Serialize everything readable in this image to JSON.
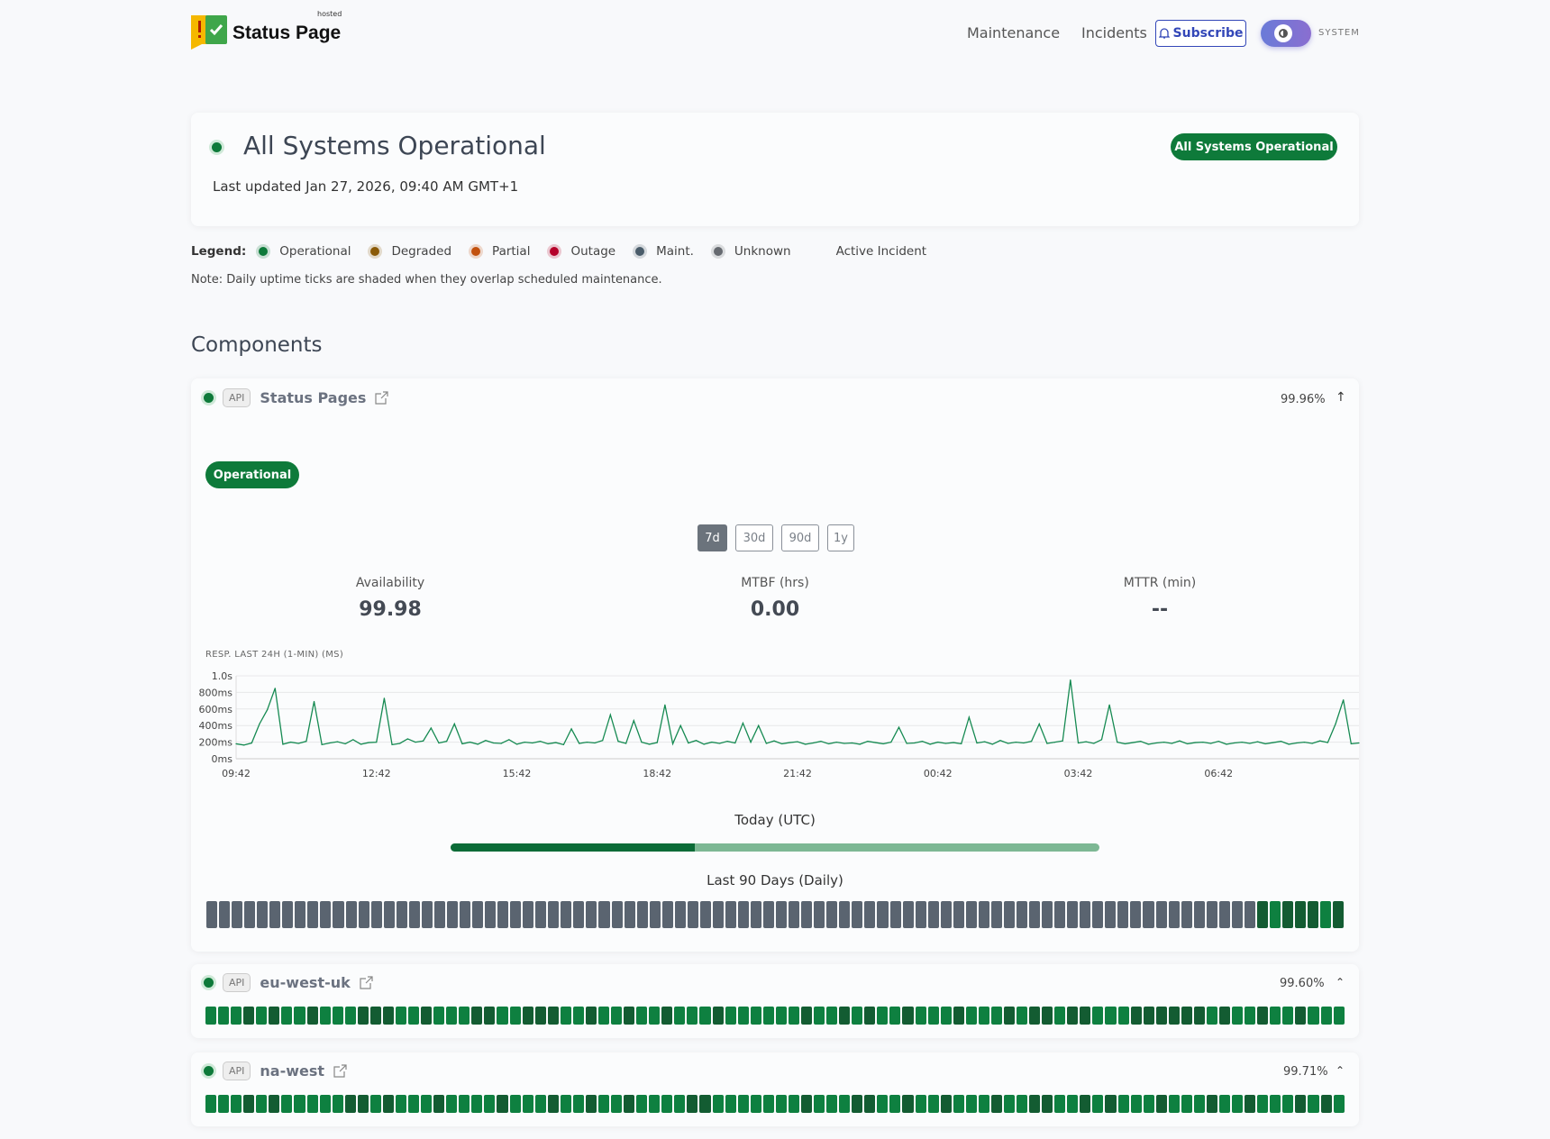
{
  "header": {
    "brand": "Status Page",
    "brand_tag": "hosted",
    "nav": [
      "Maintenance",
      "Incidents"
    ],
    "subscribe": "Subscribe",
    "theme": "SYSTEM"
  },
  "hero": {
    "title": "All Systems Operational",
    "updated": "Last updated Jan 27, 2026, 09:40 AM GMT+1",
    "badge": "All Systems Operational"
  },
  "legend": {
    "label": "Legend:",
    "items": [
      {
        "label": "Operational",
        "color": "#0e7a3a"
      },
      {
        "label": "Degraded",
        "color": "#8a5a08"
      },
      {
        "label": "Partial",
        "color": "#c2510e"
      },
      {
        "label": "Outage",
        "color": "#b5002a"
      },
      {
        "label": "Maint.",
        "color": "#4a5c6a"
      },
      {
        "label": "Unknown",
        "color": "#666a70"
      }
    ],
    "active_incident": "Active Incident",
    "note": "Note: Daily uptime ticks are shaded when they overlap scheduled maintenance."
  },
  "components_title": "Components",
  "colors": {
    "operational": "#0e8040",
    "operational_dark": "#135c32",
    "unknown": "#5a6470",
    "partial": "#c2510e"
  },
  "components": [
    {
      "tag": "API",
      "name": "Status Pages",
      "uptime": "99.96%",
      "status": "Operational",
      "ranges": [
        "7d",
        "30d",
        "90d",
        "1y"
      ],
      "active_range": "7d",
      "metrics": [
        {
          "label": "Availability",
          "value": "99.98"
        },
        {
          "label": "MTBF (hrs)",
          "value": "0.00"
        },
        {
          "label": "MTTR (min)",
          "value": "--"
        }
      ],
      "today_label": "Today (UTC)",
      "today_progress": 0.376,
      "days_label": "Last 90 Days (Daily)",
      "days": "UUUUUUUUUUUUUUUUUUUUUUUUUUUUUUUUUUUUUUUUUUUUUUUUUUUUUUUUUUUUUUUUUUUUUUUUUUUUUUUUUUUDLDDDLD"
    },
    {
      "tag": "API",
      "name": "eu-west-uk",
      "uptime": "99.60%",
      "days": "LLLDLDLLDLLLDDDLLDLLLDDLLDDDLLDLLDLLDLLLDLLLLLLDLLDLDLLDLLLDLLLDLDDLDDLLLDDDDDDLDLLDLLDLLL"
    },
    {
      "tag": "API",
      "name": "na-west",
      "uptime": "99.71%",
      "days": "LLLDLDLLLLLDDLDLLLDLLLLDLLLDLLDLLDLLLLDDLLLLLLLDLLLDDLLDLLDLLLDLLDDLLDLDLLLDLLLDLLDLLLDLDL"
    }
  ],
  "chart_data": {
    "type": "line",
    "title": "RESP. LAST 24H (1-MIN) (MS)",
    "xlabel": "",
    "ylabel": "",
    "yticks": [
      "0ms",
      "200ms",
      "400ms",
      "600ms",
      "800ms",
      "1.0s"
    ],
    "ylim": [
      0,
      1000
    ],
    "xticks": [
      "09:42",
      "12:42",
      "15:42",
      "18:42",
      "21:42",
      "00:42",
      "03:42",
      "06:42"
    ],
    "x_start": "09:42",
    "x_step_minutes": 10,
    "grid": true,
    "values": [
      180,
      165,
      190,
      420,
      590,
      850,
      175,
      200,
      185,
      210,
      690,
      170,
      190,
      205,
      180,
      230,
      175,
      195,
      200,
      730,
      170,
      185,
      240,
      200,
      215,
      370,
      190,
      210,
      420,
      180,
      200,
      175,
      220,
      190,
      185,
      230,
      175,
      200,
      190,
      210,
      180,
      195,
      170,
      360,
      185,
      200,
      190,
      220,
      530,
      210,
      185,
      460,
      200,
      175,
      195,
      650,
      180,
      400,
      190,
      220,
      175,
      200,
      185,
      210,
      190,
      430,
      200,
      400,
      185,
      215,
      180,
      195,
      205,
      175,
      190,
      210,
      180,
      200,
      185,
      190,
      175,
      210,
      195,
      180,
      200,
      380,
      185,
      190,
      210,
      175,
      200,
      185,
      195,
      180,
      500,
      190,
      205,
      175,
      220,
      185,
      200,
      190,
      210,
      420,
      185,
      200,
      215,
      950,
      190,
      205,
      185,
      230,
      650,
      200,
      180,
      195,
      210,
      175,
      190,
      200,
      185,
      215,
      180,
      195,
      200,
      185,
      210,
      175,
      190,
      200,
      185,
      205,
      180,
      195,
      210,
      175,
      190,
      200,
      185,
      215,
      195,
      420,
      710,
      180,
      190
    ]
  }
}
